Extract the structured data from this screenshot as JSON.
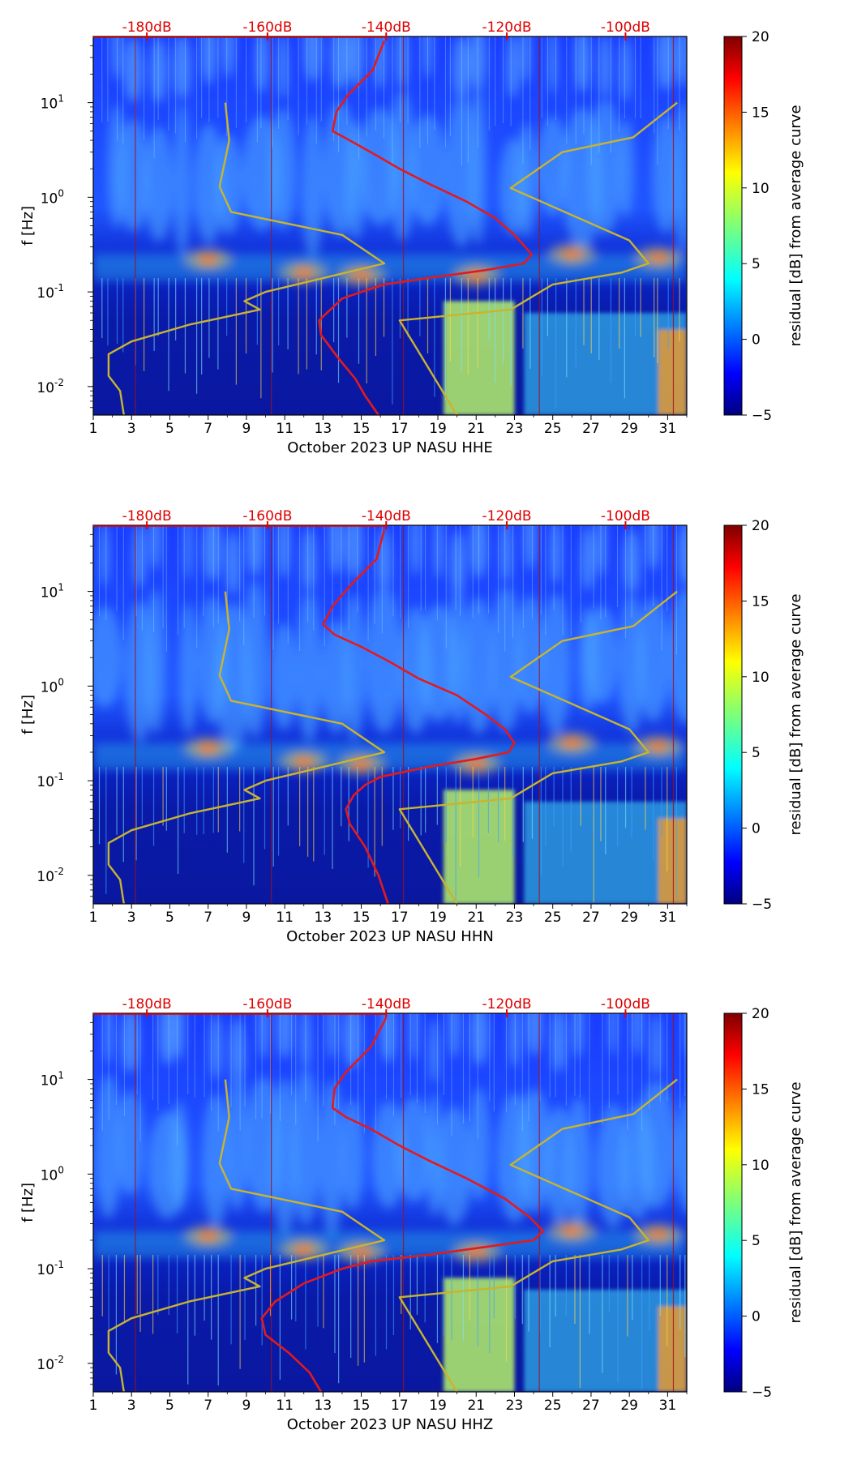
{
  "chart_data": [
    {
      "type": "heatmap",
      "xlabel": "October 2023 UP NASU  HHE",
      "ylabel": "f [Hz]",
      "x_ticks": [
        "1",
        "3",
        "5",
        "7",
        "9",
        "11",
        "13",
        "15",
        "17",
        "19",
        "21",
        "23",
        "25",
        "27",
        "29",
        "31"
      ],
      "xlim": [
        1,
        32
      ],
      "ylim": [
        0.005,
        50
      ],
      "y_ticks": [
        {
          "exp": "-2",
          "value": 0.01
        },
        {
          "exp": "-1",
          "value": 0.1
        },
        {
          "exp": "0",
          "value": 1
        },
        {
          "exp": "1",
          "value": 10
        }
      ],
      "db_ticks": [
        "-180dB",
        "-160dB",
        "-140dB",
        "-120dB",
        "-100dB"
      ],
      "colorbar": {
        "label": "residual [dB] from average curve",
        "ticks": [
          "20",
          "15",
          "10",
          "5",
          "0",
          "−5"
        ],
        "min": -5,
        "max": 20
      },
      "series": [
        {
          "name": "average PSD (red)",
          "color": "#e31a1c",
          "x": [
            16.2,
            15.6,
            14.3,
            13.7,
            13.5,
            14.2,
            15.5,
            17.0,
            18.5,
            20.5,
            22.0,
            23.0,
            23.9,
            23.5,
            21.5,
            18.5,
            16.2,
            15.0,
            14.0,
            13.2,
            12.8,
            12.9,
            13.8,
            14.7,
            15.2,
            15.9
          ],
          "f": [
            45,
            22,
            12,
            8,
            5,
            4.2,
            3,
            2,
            1.4,
            0.9,
            0.6,
            0.4,
            0.25,
            0.2,
            0.17,
            0.14,
            0.12,
            0.1,
            0.085,
            0.06,
            0.05,
            0.035,
            0.02,
            0.012,
            0.008,
            0.005
          ]
        },
        {
          "name": "noise model (olive)",
          "color": "#c8b430",
          "x": [
            7.9,
            8.1,
            7.6,
            8.2,
            14.0,
            16.2,
            10.0,
            8.9,
            9.7,
            6.0,
            3.0,
            1.8,
            1.8,
            2.4,
            2.6
          ],
          "f": [
            10,
            4,
            1.3,
            0.7,
            0.4,
            0.2,
            0.1,
            0.08,
            0.065,
            0.045,
            0.03,
            0.022,
            0.013,
            0.009,
            0.005
          ]
        },
        {
          "name": "noise model (olive, right)",
          "color": "#c8b430",
          "x": [
            31.5,
            29.2,
            25.5,
            22.8,
            29.0,
            30.0,
            28.6,
            25.0,
            22.8,
            17.0,
            20.0
          ],
          "f": [
            10,
            4.3,
            3,
            1.25,
            0.35,
            0.2,
            0.16,
            0.12,
            0.065,
            0.05,
            0.005
          ]
        }
      ]
    },
    {
      "type": "heatmap",
      "xlabel": "October 2023 UP NASU  HHN",
      "ylabel": "f [Hz]",
      "x_ticks": [
        "1",
        "3",
        "5",
        "7",
        "9",
        "11",
        "13",
        "15",
        "17",
        "19",
        "21",
        "23",
        "25",
        "27",
        "29",
        "31"
      ],
      "xlim": [
        1,
        32
      ],
      "ylim": [
        0.005,
        50
      ],
      "y_ticks": [
        {
          "exp": "-2",
          "value": 0.01
        },
        {
          "exp": "-1",
          "value": 0.1
        },
        {
          "exp": "0",
          "value": 1
        },
        {
          "exp": "1",
          "value": 10
        }
      ],
      "db_ticks": [
        "-180dB",
        "-160dB",
        "-140dB",
        "-120dB",
        "-100dB"
      ],
      "colorbar": {
        "label": "residual [dB] from average curve",
        "ticks": [
          "20",
          "15",
          "10",
          "5",
          "0",
          "−5"
        ],
        "min": -5,
        "max": 20
      },
      "series": [
        {
          "name": "average PSD (red)",
          "color": "#e31a1c",
          "x": [
            16.2,
            15.8,
            14.5,
            13.5,
            13.0,
            13.6,
            15.0,
            16.5,
            18.0,
            20.0,
            21.5,
            22.5,
            23.0,
            22.7,
            21.0,
            18.5,
            16.0,
            15.2,
            14.6,
            14.2,
            14.4,
            15.2,
            15.9,
            16.4
          ],
          "f": [
            45,
            22,
            12,
            7,
            4.5,
            3.5,
            2.6,
            1.8,
            1.2,
            0.8,
            0.5,
            0.35,
            0.25,
            0.2,
            0.17,
            0.14,
            0.11,
            0.09,
            0.07,
            0.05,
            0.035,
            0.02,
            0.01,
            0.005
          ]
        },
        {
          "name": "noise model (olive)",
          "color": "#c8b430",
          "x": [
            7.9,
            8.1,
            7.6,
            8.2,
            14.0,
            16.2,
            10.0,
            8.9,
            9.7,
            6.0,
            3.0,
            1.8,
            1.8,
            2.4,
            2.6
          ],
          "f": [
            10,
            4,
            1.3,
            0.7,
            0.4,
            0.2,
            0.1,
            0.08,
            0.065,
            0.045,
            0.03,
            0.022,
            0.013,
            0.009,
            0.005
          ]
        },
        {
          "name": "noise model (olive, right)",
          "color": "#c8b430",
          "x": [
            31.5,
            29.2,
            25.5,
            22.8,
            29.0,
            30.0,
            28.6,
            25.0,
            22.8,
            17.0,
            20.0
          ],
          "f": [
            10,
            4.3,
            3,
            1.25,
            0.35,
            0.2,
            0.16,
            0.12,
            0.065,
            0.05,
            0.005
          ]
        }
      ]
    },
    {
      "type": "heatmap",
      "xlabel": "October 2023 UP NASU  HHZ",
      "ylabel": "f [Hz]",
      "x_ticks": [
        "1",
        "3",
        "5",
        "7",
        "9",
        "11",
        "13",
        "15",
        "17",
        "19",
        "21",
        "23",
        "25",
        "27",
        "29",
        "31"
      ],
      "xlim": [
        1,
        32
      ],
      "ylim": [
        0.005,
        50
      ],
      "y_ticks": [
        {
          "exp": "-2",
          "value": 0.01
        },
        {
          "exp": "-1",
          "value": 0.1
        },
        {
          "exp": "0",
          "value": 1
        },
        {
          "exp": "1",
          "value": 10
        }
      ],
      "db_ticks": [
        "-180dB",
        "-160dB",
        "-140dB",
        "-120dB",
        "-100dB"
      ],
      "colorbar": {
        "label": "residual [dB] from average curve",
        "ticks": [
          "20",
          "15",
          "10",
          "5",
          "0",
          "−5"
        ],
        "min": -5,
        "max": 20
      },
      "series": [
        {
          "name": "average PSD (red)",
          "color": "#e31a1c",
          "x": [
            16.3,
            15.5,
            14.2,
            13.6,
            13.5,
            14.2,
            15.5,
            17.0,
            18.5,
            20.5,
            22.5,
            23.8,
            24.5,
            24.0,
            21.5,
            18.5,
            15.5,
            14.0,
            12.0,
            10.5,
            9.8,
            10.0,
            11.2,
            12.3,
            12.9
          ],
          "f": [
            45,
            22,
            12,
            8,
            5,
            4,
            3,
            2,
            1.4,
            0.9,
            0.55,
            0.35,
            0.25,
            0.2,
            0.17,
            0.14,
            0.12,
            0.1,
            0.07,
            0.045,
            0.03,
            0.02,
            0.013,
            0.008,
            0.005
          ]
        },
        {
          "name": "noise model (olive)",
          "color": "#c8b430",
          "x": [
            7.9,
            8.1,
            7.6,
            8.2,
            14.0,
            16.2,
            10.0,
            8.9,
            9.7,
            6.0,
            3.0,
            1.8,
            1.8,
            2.4,
            2.6
          ],
          "f": [
            10,
            4,
            1.3,
            0.7,
            0.4,
            0.2,
            0.1,
            0.08,
            0.065,
            0.045,
            0.03,
            0.022,
            0.013,
            0.009,
            0.005
          ]
        },
        {
          "name": "noise model (olive, right)",
          "color": "#c8b430",
          "x": [
            31.5,
            29.2,
            25.5,
            22.8,
            29.0,
            30.0,
            28.6,
            25.0,
            22.8,
            17.0,
            20.0
          ],
          "f": [
            10,
            4.3,
            3,
            1.25,
            0.35,
            0.2,
            0.16,
            0.12,
            0.065,
            0.05,
            0.005
          ]
        }
      ]
    }
  ]
}
